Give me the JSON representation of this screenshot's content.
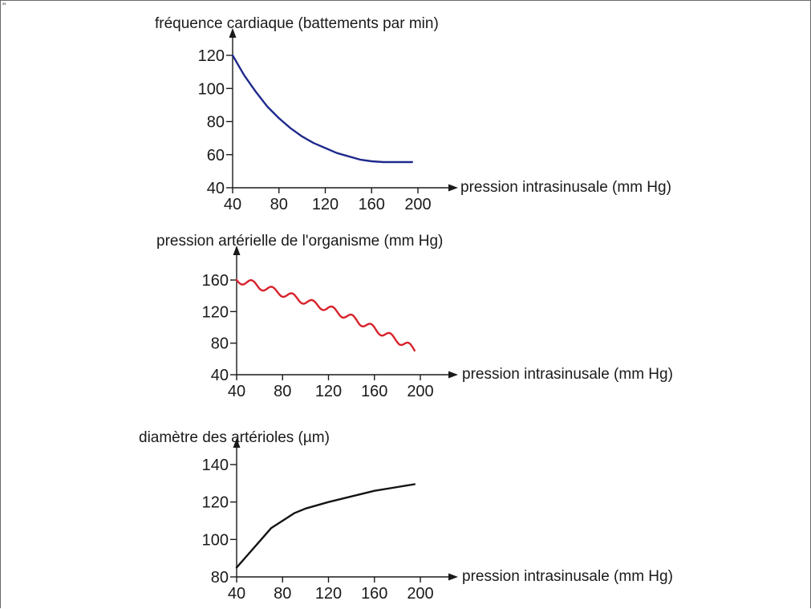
{
  "page": {
    "corner_mark": "\""
  },
  "chart_data": [
    {
      "type": "line",
      "title": "fréquence cardiaque (battements par min)",
      "xlabel": "pression intrasinusale (mm Hg)",
      "ylabel": "fréquence cardiaque (battements par min)",
      "xlim": [
        40,
        200
      ],
      "ylim": [
        40,
        120
      ],
      "x_ticks": [
        40,
        80,
        120,
        160,
        200
      ],
      "y_ticks": [
        40,
        60,
        80,
        100,
        120
      ],
      "color": "#1f2a8c",
      "wave": 0,
      "series": [
        {
          "x": [
            40,
            50,
            60,
            70,
            80,
            90,
            100,
            110,
            120,
            130,
            140,
            150,
            160,
            170,
            180,
            195
          ],
          "values": [
            120,
            108,
            98,
            89,
            82,
            76,
            71,
            67,
            64,
            61,
            59,
            57,
            56,
            55.5,
            55.5,
            55.5
          ]
        }
      ]
    },
    {
      "type": "line",
      "title": "pression artérielle de l'organisme (mm Hg)",
      "xlabel": "pression intrasinusale (mm Hg)",
      "ylabel": "pression artérielle de l'organisme (mm Hg)",
      "xlim": [
        40,
        200
      ],
      "ylim": [
        40,
        160
      ],
      "x_ticks": [
        40,
        80,
        120,
        160,
        200
      ],
      "y_ticks": [
        40,
        80,
        120,
        160
      ],
      "color": "#d8222b",
      "wave": 1,
      "series": [
        {
          "x": [
            40,
            50,
            60,
            80,
            100,
            120,
            140,
            160,
            180,
            195
          ],
          "values": [
            160,
            157,
            152,
            143,
            133,
            124,
            112,
            98,
            84,
            72
          ]
        }
      ]
    },
    {
      "type": "line",
      "title": "diamètre des artérioles (µm)",
      "xlabel": "pression intrasinusale (mm Hg)",
      "ylabel": "diamètre des artérioles (µm)",
      "xlim": [
        40,
        200
      ],
      "ylim": [
        80,
        140
      ],
      "x_ticks": [
        40,
        80,
        120,
        160,
        200
      ],
      "y_ticks": [
        80,
        100,
        120,
        140
      ],
      "color": "#141414",
      "wave": 0,
      "series": [
        {
          "x": [
            40,
            50,
            60,
            70,
            80,
            90,
            100,
            120,
            140,
            160,
            180,
            195
          ],
          "values": [
            85,
            92,
            99,
            106,
            110,
            114,
            116.5,
            120,
            123,
            126,
            128,
            129.5
          ]
        }
      ]
    }
  ]
}
